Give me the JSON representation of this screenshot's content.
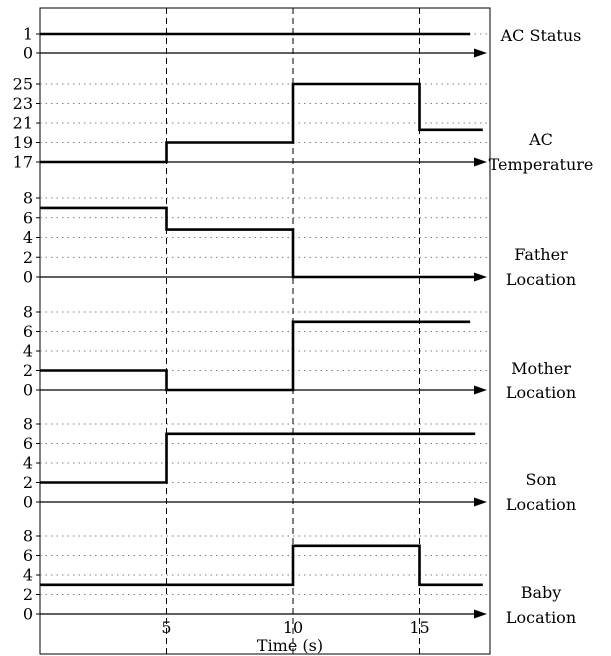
{
  "chart_data": {
    "type": "line",
    "xlabel": "Time (s)",
    "x_ticks": [
      "5",
      "10",
      "15"
    ],
    "x_tick_values": [
      5,
      10,
      15
    ],
    "xlim": [
      0,
      17.5
    ],
    "vertical_dashed_lines_at": [
      5,
      10,
      15
    ],
    "grid": "dotted horizontal",
    "panels": [
      {
        "label_lines": [
          "AC Status"
        ],
        "yticks": [
          "1",
          "0"
        ],
        "ytick_values": [
          1,
          0
        ],
        "ylim": [
          0,
          1
        ],
        "series": [
          {
            "x": [
              0,
              17
            ],
            "y": [
              1,
              1
            ]
          }
        ]
      },
      {
        "label_lines": [
          "AC",
          "Temperature"
        ],
        "yticks": [
          "25",
          "23",
          "21",
          "19",
          "17"
        ],
        "ytick_values": [
          25,
          23,
          21,
          19,
          17
        ],
        "ylim": [
          17,
          25
        ],
        "series": [
          {
            "x": [
              0,
              5,
              5,
              10,
              10,
              15,
              15,
              17.5
            ],
            "y": [
              17,
              17,
              19,
              19,
              25,
              25,
              20.3,
              20.3
            ]
          }
        ]
      },
      {
        "label_lines": [
          "Father",
          "Location"
        ],
        "yticks": [
          "8",
          "6",
          "4",
          "2",
          "0"
        ],
        "ytick_values": [
          8,
          6,
          4,
          2,
          0
        ],
        "ylim": [
          0,
          8
        ],
        "series": [
          {
            "x": [
              0,
              5,
              5,
              10,
              10,
              17.5
            ],
            "y": [
              7,
              7,
              4.8,
              4.8,
              0,
              0
            ]
          }
        ]
      },
      {
        "label_lines": [
          "Mother",
          "Location"
        ],
        "yticks": [
          "8",
          "6",
          "4",
          "2",
          "0"
        ],
        "ytick_values": [
          8,
          6,
          4,
          2,
          0
        ],
        "ylim": [
          0,
          8
        ],
        "series": [
          {
            "x": [
              0,
              5,
              5,
              10,
              10,
              17
            ],
            "y": [
              2,
              2,
              0,
              0,
              7,
              7
            ]
          }
        ]
      },
      {
        "label_lines": [
          "Son",
          "Location"
        ],
        "yticks": [
          "8",
          "6",
          "4",
          "2",
          "0"
        ],
        "ytick_values": [
          8,
          6,
          4,
          2,
          0
        ],
        "ylim": [
          0,
          8
        ],
        "series": [
          {
            "x": [
              0,
              5,
              5,
              17.2
            ],
            "y": [
              2,
              2,
              7,
              7
            ]
          }
        ]
      },
      {
        "label_lines": [
          "Baby",
          "Location"
        ],
        "yticks": [
          "8",
          "6",
          "4",
          "2",
          "0"
        ],
        "ytick_values": [
          8,
          6,
          4,
          2,
          0
        ],
        "ylim": [
          0,
          8
        ],
        "series": [
          {
            "x": [
              0,
              10,
              10,
              15,
              15,
              17.5
            ],
            "y": [
              3,
              3,
              7,
              7,
              3,
              3
            ]
          }
        ]
      }
    ]
  }
}
